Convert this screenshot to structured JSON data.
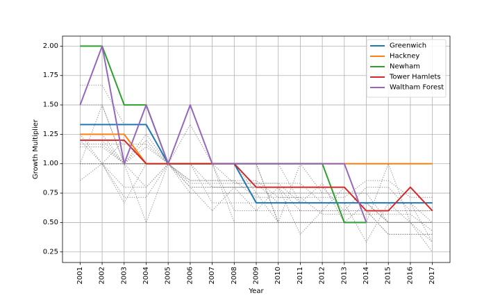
{
  "chart_data": {
    "type": "line",
    "title": "",
    "xlabel": "Year",
    "ylabel": "Growth Multiplier",
    "x": [
      2001,
      2002,
      2003,
      2004,
      2005,
      2006,
      2007,
      2008,
      2009,
      2010,
      2011,
      2012,
      2013,
      2014,
      2015,
      2016,
      2017
    ],
    "xlim": [
      2000.2,
      2017.8
    ],
    "ylim": [
      0.16,
      2.085
    ],
    "yticks": [
      0.25,
      0.5,
      0.75,
      1.0,
      1.25,
      1.5,
      1.75,
      2.0
    ],
    "ytick_labels": [
      "0.25",
      "0.50",
      "0.75",
      "1.00",
      "1.25",
      "1.50",
      "1.75",
      "2.00"
    ],
    "xtick_labels": [
      "2001",
      "2002",
      "2003",
      "2004",
      "2005",
      "2006",
      "2007",
      "2008",
      "2009",
      "2010",
      "2011",
      "2012",
      "2013",
      "2014",
      "2015",
      "2016",
      "2017"
    ],
    "grid": true,
    "legend_position": "top-right",
    "series": [
      {
        "name": "Greenwich",
        "color": "#1f77b4",
        "values": [
          1.333,
          1.333,
          1.333,
          1.333,
          1.0,
          1.0,
          1.0,
          1.0,
          0.667,
          0.667,
          0.667,
          0.667,
          0.667,
          0.667,
          0.667,
          0.667,
          0.667
        ]
      },
      {
        "name": "Hackney",
        "color": "#ff7f0e",
        "values": [
          1.25,
          1.25,
          1.25,
          1.0,
          1.0,
          1.0,
          1.0,
          1.0,
          1.0,
          1.0,
          1.0,
          1.0,
          1.0,
          1.0,
          1.0,
          1.0,
          1.0
        ]
      },
      {
        "name": "Newham",
        "color": "#2ca02c",
        "values": [
          2.0,
          2.0,
          1.5,
          1.5,
          1.0,
          1.0,
          1.0,
          1.0,
          1.0,
          1.0,
          1.0,
          1.0,
          0.5,
          0.5,
          null,
          null,
          null
        ]
      },
      {
        "name": "Tower Hamlets",
        "color": "#d62728",
        "values": [
          1.2,
          1.2,
          1.2,
          1.0,
          1.0,
          1.0,
          1.0,
          1.0,
          0.8,
          0.8,
          0.8,
          0.8,
          0.8,
          0.6,
          0.6,
          0.8,
          0.6
        ]
      },
      {
        "name": "Waltham Forest",
        "color": "#9467bd",
        "values": [
          1.5,
          2.0,
          1.0,
          1.5,
          1.0,
          1.5,
          1.0,
          1.0,
          1.0,
          1.0,
          1.0,
          1.0,
          1.0,
          0.5,
          null,
          null,
          null
        ]
      }
    ],
    "background_series": {
      "color": "#888888",
      "style": "dotted",
      "lines": [
        [
          1.0,
          1.0,
          0.8,
          0.8,
          1.0,
          0.8,
          0.8,
          0.8,
          0.6,
          0.6,
          0.6,
          0.6,
          0.6,
          0.6,
          0.4,
          0.4,
          0.4
        ],
        [
          1.667,
          1.667,
          1.333,
          1.333,
          1.0,
          1.0,
          1.0,
          1.0,
          0.667,
          0.667,
          0.667,
          0.667,
          0.667,
          0.667,
          0.667,
          0.667,
          0.5
        ],
        [
          0.857,
          1.0,
          0.714,
          0.714,
          1.0,
          0.857,
          0.857,
          0.857,
          0.714,
          0.714,
          0.714,
          0.571,
          0.571,
          0.571,
          0.571,
          0.571,
          0.429
        ],
        [
          1.0,
          1.5,
          1.0,
          0.5,
          1.0,
          1.0,
          1.0,
          0.5,
          0.5,
          0.5,
          0.5,
          0.5,
          0.5,
          0.5,
          0.5,
          0.5,
          0.5
        ],
        [
          1.167,
          1.167,
          1.0,
          1.0,
          1.0,
          0.833,
          0.833,
          0.833,
          0.833,
          0.667,
          0.667,
          0.667,
          0.667,
          0.667,
          0.667,
          0.5,
          0.5
        ],
        [
          1.2,
          1.2,
          1.0,
          1.2,
          1.0,
          1.0,
          1.0,
          0.6,
          0.6,
          0.8,
          0.4,
          0.6,
          0.8,
          0.6,
          0.6,
          0.6,
          0.6
        ],
        [
          1.25,
          1.25,
          1.0,
          1.0,
          1.0,
          0.75,
          0.75,
          0.75,
          0.75,
          0.5,
          0.5,
          0.5,
          0.5,
          0.5,
          0.5,
          0.5,
          0.25
        ],
        [
          1.0,
          1.0,
          1.0,
          1.0,
          1.0,
          1.333,
          1.0,
          1.0,
          1.0,
          1.0,
          0.667,
          0.667,
          0.667,
          0.333,
          0.667,
          0.667,
          0.667
        ],
        [
          1.0,
          1.0,
          1.0,
          0.8,
          1.0,
          0.8,
          0.6,
          0.8,
          0.8,
          0.8,
          0.6,
          0.6,
          0.6,
          0.8,
          0.8,
          0.6,
          0.6
        ],
        [
          1.2,
          1.0,
          1.2,
          1.0,
          1.0,
          1.0,
          0.8,
          0.8,
          0.8,
          0.8,
          0.8,
          0.8,
          0.8,
          0.6,
          0.6,
          0.6,
          0.6
        ],
        [
          1.167,
          1.167,
          1.167,
          1.167,
          1.0,
          0.833,
          0.833,
          0.833,
          0.833,
          0.833,
          0.667,
          0.833,
          0.5,
          0.667,
          0.5,
          0.5,
          0.5
        ],
        [
          1.0,
          1.0,
          1.0,
          1.5,
          1.0,
          1.0,
          1.0,
          1.0,
          1.0,
          0.5,
          1.0,
          1.0,
          1.0,
          0.5,
          1.0,
          0.5,
          0.5
        ],
        [
          1.25,
          1.0,
          1.0,
          1.25,
          1.0,
          1.0,
          1.0,
          1.0,
          0.75,
          0.75,
          0.75,
          0.75,
          0.75,
          0.75,
          0.75,
          0.75,
          0.75
        ],
        [
          1.0,
          1.0,
          1.0,
          1.0,
          1.0,
          1.0,
          1.0,
          1.0,
          1.0,
          1.0,
          1.0,
          0.75,
          0.75,
          0.75,
          0.5,
          0.5,
          0.5
        ],
        [
          1.143,
          1.143,
          1.0,
          1.143,
          1.0,
          0.857,
          0.857,
          0.857,
          0.857,
          0.714,
          0.714,
          0.714,
          0.714,
          0.857,
          0.857,
          0.714,
          0.714
        ],
        [
          1.0,
          1.0,
          1.0,
          1.0,
          1.0,
          1.0,
          1.0,
          0.833,
          0.833,
          0.833,
          0.833,
          0.667,
          0.667,
          0.667,
          0.5,
          0.5,
          0.333
        ],
        [
          1.0,
          1.0,
          0.667,
          1.0,
          1.0,
          1.0,
          0.667,
          0.667,
          0.667,
          0.667,
          0.667,
          0.667,
          0.667,
          0.667,
          0.667,
          0.667,
          0.333
        ],
        [
          1.0,
          1.0,
          1.0,
          1.0,
          1.0,
          0.8,
          0.8,
          0.8,
          0.8,
          0.8,
          0.8,
          0.8,
          0.6,
          0.6,
          0.4,
          0.4,
          0.4
        ],
        [
          1.5,
          1.5,
          1.0,
          1.0,
          1.0,
          1.0,
          1.0,
          1.0,
          1.0,
          0.5,
          0.5,
          0.5,
          0.5,
          0.5,
          0.5,
          0.5,
          0.5
        ]
      ]
    }
  }
}
